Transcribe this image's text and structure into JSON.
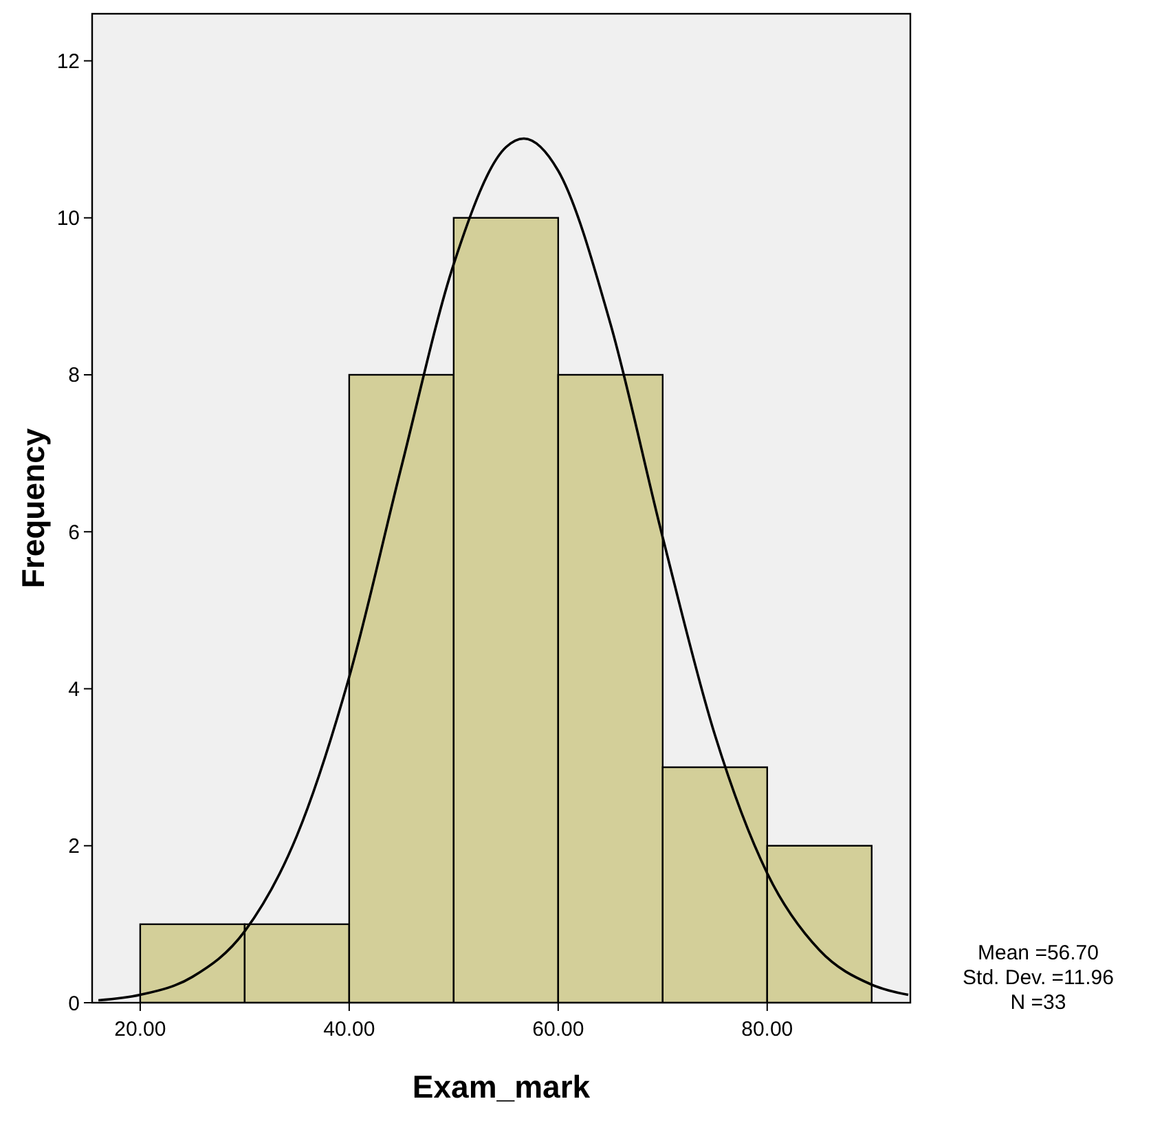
{
  "chart_data": {
    "type": "histogram",
    "xlabel": "Exam_mark",
    "ylabel": "Frequency",
    "bins": [
      20,
      30,
      40,
      50,
      60,
      70,
      80,
      90
    ],
    "series": [
      {
        "color": "#d3cf99",
        "values": [
          1,
          1,
          8,
          10,
          8,
          3,
          2
        ]
      },
      {
        "type": "line",
        "color": "#000000",
        "x": [
          16,
          20,
          25,
          30,
          35,
          40,
          45,
          50,
          55,
          56.7,
          60,
          65,
          70,
          75,
          80,
          85,
          90,
          93.5
        ],
        "values": [
          0.03,
          0.1,
          0.33,
          0.91,
          2.13,
          4.15,
          6.83,
          9.41,
          10.9,
          11.01,
          10.6,
          8.65,
          5.93,
          3.41,
          1.65,
          0.67,
          0.23,
          0.1
        ]
      }
    ],
    "xlim": [
      15.4,
      93.7
    ],
    "ylim": [
      0,
      12.6
    ],
    "xticks": [
      {
        "value": 20,
        "label": "20.00"
      },
      {
        "value": 40,
        "label": "40.00"
      },
      {
        "value": 60,
        "label": "60.00"
      },
      {
        "value": 80,
        "label": "80.00"
      }
    ],
    "yticks": [
      0,
      2,
      4,
      6,
      8,
      10,
      12
    ],
    "grid": false,
    "marker": "none",
    "line_style": "solid",
    "annotations": [
      "Mean =56.70",
      "Std. Dev. =11.96",
      "N =33"
    ]
  }
}
